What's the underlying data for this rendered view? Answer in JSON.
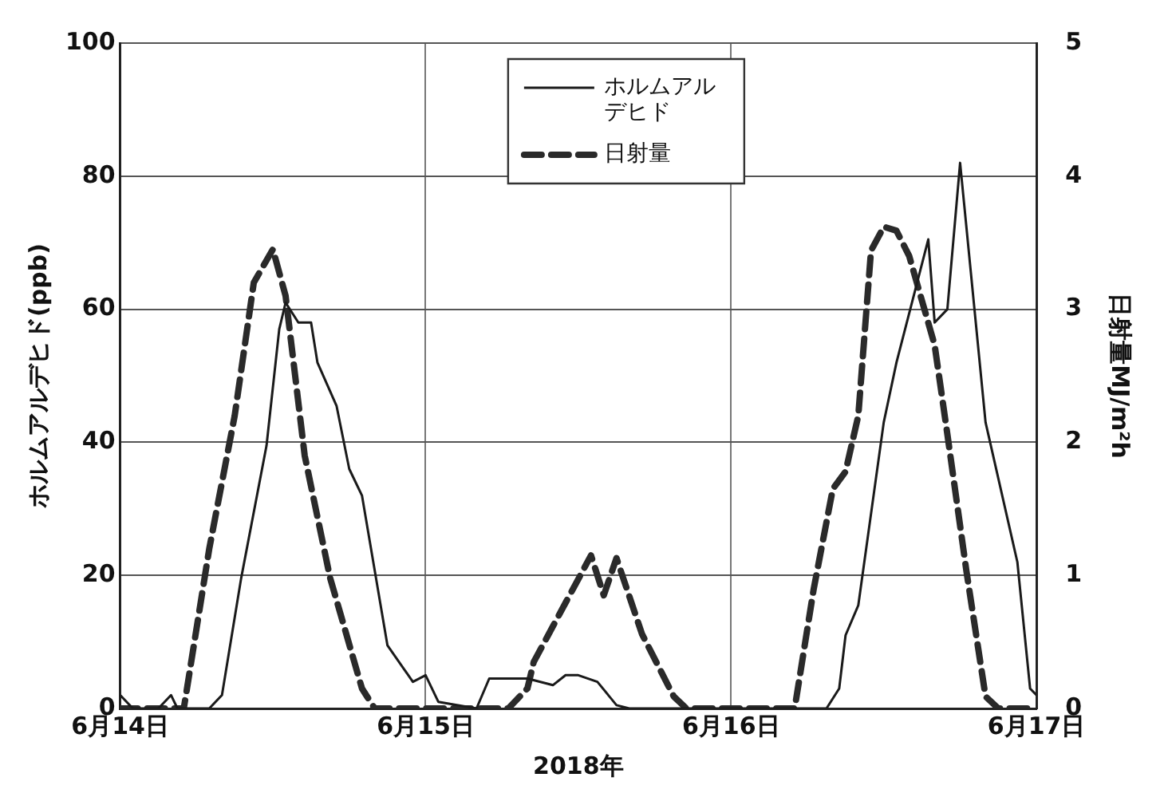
{
  "chart_data": {
    "type": "line",
    "xlabel": "2018年",
    "ylabel": "ホルムアルデヒド(ppb)",
    "y2label": "日射量MJ/m²h",
    "xlim": [
      "2018-06-14",
      "2018-06-17"
    ],
    "xticks": [
      {
        "value": "2018-06-14",
        "label": "6月14日"
      },
      {
        "value": "2018-06-15",
        "label": "6月15日"
      },
      {
        "value": "2018-06-16",
        "label": "6月16日"
      },
      {
        "value": "2018-06-17",
        "label": "6月17日"
      }
    ],
    "ylim": [
      0,
      100
    ],
    "yticks": [
      0,
      20,
      40,
      60,
      80,
      100
    ],
    "y2lim": [
      0,
      5
    ],
    "y2ticks": [
      0,
      1,
      2,
      3,
      4,
      5
    ],
    "grid": true,
    "legend": "top",
    "marker": "none",
    "series": [
      {
        "name": "ホルムアルデヒド",
        "color": "#1a1a1a",
        "line_style": "solid",
        "x": [
          "2018-06-14T00:00",
          "2018-06-14T01:00",
          "2018-06-14T03:00",
          "2018-06-14T04:00",
          "2018-06-14T04:30",
          "2018-06-14T07:00",
          "2018-06-14T08:00",
          "2018-06-14T09:30",
          "2018-06-14T11:30",
          "2018-06-14T12:30",
          "2018-06-14T13:00",
          "2018-06-14T14:00",
          "2018-06-14T15:00",
          "2018-06-14T15:30",
          "2018-06-14T17:00",
          "2018-06-14T18:00",
          "2018-06-14T19:00",
          "2018-06-14T21:00",
          "2018-06-14T23:00",
          "2018-06-15T00:00",
          "2018-06-15T01:00",
          "2018-06-15T04:00",
          "2018-06-15T05:00",
          "2018-06-15T08:00",
          "2018-06-15T10:00",
          "2018-06-15T11:00",
          "2018-06-15T12:00",
          "2018-06-15T13:30",
          "2018-06-15T15:00",
          "2018-06-15T16:00",
          "2018-06-16T07:30",
          "2018-06-16T08:30",
          "2018-06-16T09:00",
          "2018-06-16T10:00",
          "2018-06-16T12:00",
          "2018-06-16T13:00",
          "2018-06-16T15:30",
          "2018-06-16T16:00",
          "2018-06-16T17:00",
          "2018-06-16T18:00",
          "2018-06-16T20:00",
          "2018-06-16T22:30",
          "2018-06-16T23:30",
          "2018-06-17T00:00"
        ],
        "values": [
          2,
          0,
          0,
          2,
          0,
          0,
          2,
          19.5,
          39.5,
          57,
          61,
          58,
          58,
          52,
          45.5,
          36,
          32,
          9.5,
          4,
          5,
          1,
          0,
          4.5,
          4.5,
          3.5,
          5,
          5,
          4,
          0.5,
          0,
          0,
          3,
          11,
          15.5,
          43,
          52,
          70.5,
          58,
          60,
          82,
          43,
          22,
          3,
          2
        ]
      },
      {
        "name": "日射量",
        "color": "#2a2a2a",
        "line_style": "dashed",
        "axis": "y2",
        "x": [
          "2018-06-14T00:00",
          "2018-06-14T05:00",
          "2018-06-14T07:00",
          "2018-06-14T09:00",
          "2018-06-14T10:30",
          "2018-06-14T12:00",
          "2018-06-14T13:00",
          "2018-06-14T14:30",
          "2018-06-14T16:30",
          "2018-06-14T19:00",
          "2018-06-14T20:00",
          "2018-06-15T06:30",
          "2018-06-15T08:00",
          "2018-06-15T08:30",
          "2018-06-15T13:00",
          "2018-06-15T14:00",
          "2018-06-15T15:00",
          "2018-06-15T17:00",
          "2018-06-15T19:30",
          "2018-06-15T20:30",
          "2018-06-16T05:00",
          "2018-06-16T06:30",
          "2018-06-16T08:00",
          "2018-06-16T09:00",
          "2018-06-16T10:00",
          "2018-06-16T11:00",
          "2018-06-16T12:00",
          "2018-06-16T13:00",
          "2018-06-16T14:00",
          "2018-06-16T16:00",
          "2018-06-16T17:00",
          "2018-06-16T18:30",
          "2018-06-16T20:00",
          "2018-06-16T21:00",
          "2018-06-17T00:00"
        ],
        "values": [
          0,
          0,
          1.2,
          2.2,
          3.2,
          3.45,
          3.1,
          1.9,
          0.98,
          0.15,
          0,
          0,
          0.15,
          0.35,
          1.15,
          0.85,
          1.13,
          0.56,
          0.09,
          0,
          0,
          0.9,
          1.65,
          1.78,
          2.2,
          3.44,
          3.62,
          3.59,
          3.4,
          2.73,
          2.06,
          1.03,
          0.09,
          0,
          0
        ]
      }
    ]
  }
}
